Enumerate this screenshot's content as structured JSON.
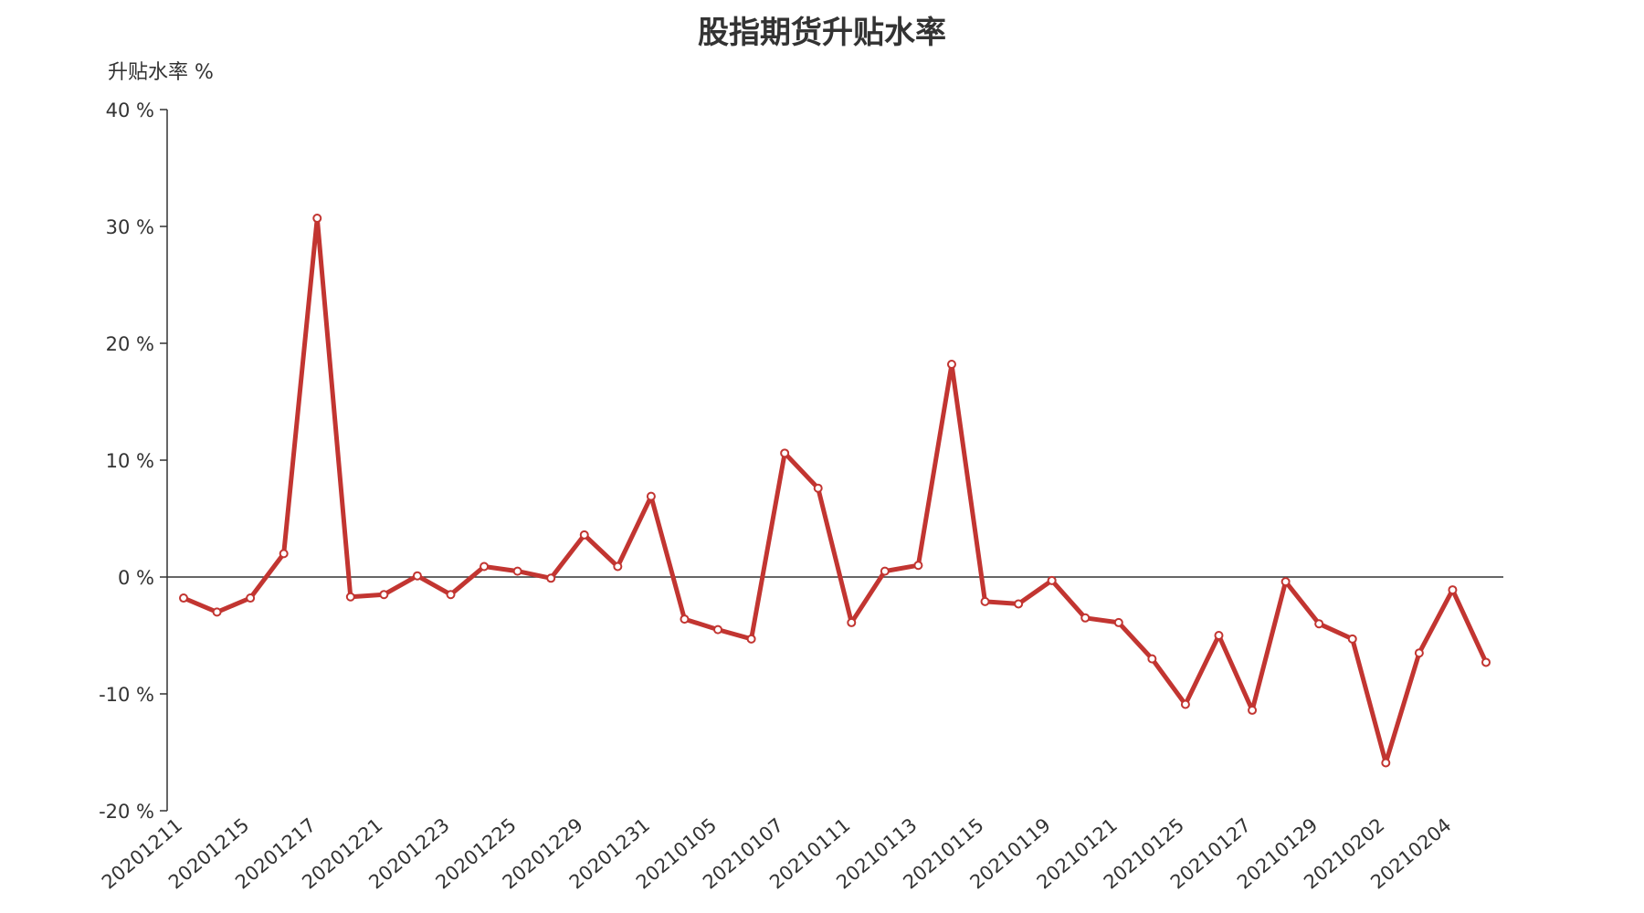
{
  "chart_data": {
    "type": "line",
    "title": "股指期货升贴水率",
    "ylabel": "升贴水率 %",
    "xlabel": "",
    "ylim": [
      -20,
      40
    ],
    "y_ticks": [
      "40 %",
      "30 %",
      "20 %",
      "10 %",
      "0 %",
      "-10 %",
      "-20 %"
    ],
    "y_tick_values": [
      40,
      30,
      20,
      10,
      0,
      -10,
      -20
    ],
    "x_tick_labels": [
      "20201211",
      "20201215",
      "20201217",
      "20201221",
      "20201223",
      "20201225",
      "20201229",
      "20201231",
      "20210105",
      "20210107",
      "20210111",
      "20210113",
      "20210115",
      "20210119",
      "20210121",
      "20210125",
      "20210127",
      "20210129",
      "20210202",
      "20210204"
    ],
    "series": [
      {
        "values": [
          -1.8,
          -3.0,
          -1.8,
          2.0,
          30.7,
          -1.7,
          -1.5,
          0.1,
          -1.5,
          0.9,
          0.5,
          -0.1,
          3.6,
          0.9,
          6.9,
          -3.6,
          -4.5,
          -5.3,
          10.6,
          7.6,
          -3.9,
          0.5,
          1.0,
          18.2,
          -2.1,
          -2.3,
          -0.3,
          -3.5,
          -3.9,
          -7.0,
          -10.9,
          -5.0,
          -11.4,
          -0.4,
          -4.0,
          -5.3,
          -15.9,
          -6.5,
          -1.1,
          -7.3
        ]
      }
    ],
    "colors": {
      "line": "#c23531",
      "axis": "#333333",
      "zero_line": "#333333",
      "point_fill": "#ffffff"
    },
    "grid": false,
    "legend": "none"
  }
}
